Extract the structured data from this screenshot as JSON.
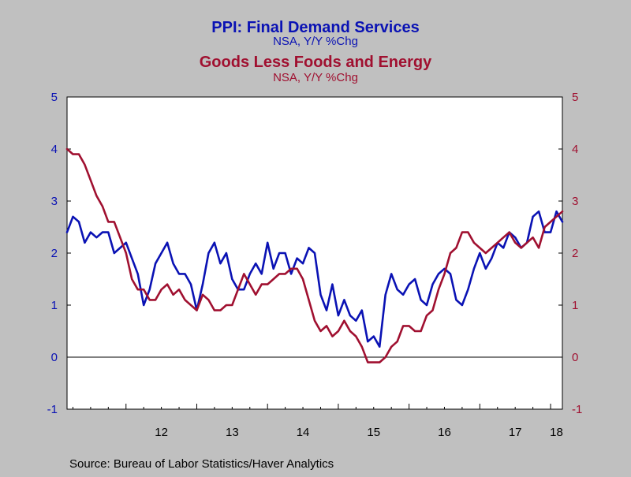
{
  "titles": {
    "series1_title": "PPI: Final Demand Services",
    "series1_subtitle": "NSA, Y/Y %Chg",
    "series2_title": "Goods Less Foods and Energy",
    "series2_subtitle": "NSA, Y/Y %Chg"
  },
  "source": "Source:  Bureau of Labor Statistics/Haver Analytics",
  "colors": {
    "background": "#c0c0c0",
    "plot_background": "#ffffff",
    "series1": "#0a12b4",
    "series2": "#a01030",
    "axis": "#000000"
  },
  "chart_data": {
    "type": "line",
    "x_unit": "monthly",
    "x_start": "2011-03",
    "x_end": "2018-03",
    "xtick_labels": [
      "12",
      "13",
      "14",
      "15",
      "16",
      "17",
      "18"
    ],
    "ylim": [
      -1,
      5
    ],
    "yticks": [
      -1,
      0,
      1,
      2,
      3,
      4,
      5
    ],
    "y_left_color": "#0a12b4",
    "y_right_color": "#a01030",
    "zero_line": true,
    "grid": false,
    "series": [
      {
        "name": "PPI: Final Demand Services",
        "axis": "left",
        "color": "#0a12b4",
        "values": [
          2.4,
          2.7,
          2.6,
          2.2,
          2.4,
          2.3,
          2.4,
          2.4,
          2.0,
          2.1,
          2.2,
          1.9,
          1.6,
          1.0,
          1.3,
          1.8,
          2.0,
          2.2,
          1.8,
          1.6,
          1.6,
          1.4,
          0.9,
          1.4,
          2.0,
          2.2,
          1.8,
          2.0,
          1.5,
          1.3,
          1.3,
          1.6,
          1.8,
          1.6,
          2.2,
          1.7,
          2.0,
          2.0,
          1.6,
          1.9,
          1.8,
          2.1,
          2.0,
          1.2,
          0.9,
          1.4,
          0.8,
          1.1,
          0.8,
          0.7,
          0.9,
          0.3,
          0.4,
          0.2,
          1.2,
          1.6,
          1.3,
          1.2,
          1.4,
          1.5,
          1.1,
          1.0,
          1.4,
          1.6,
          1.7,
          1.6,
          1.1,
          1.0,
          1.3,
          1.7,
          2.0,
          1.7,
          1.9,
          2.2,
          2.1,
          2.4,
          2.3,
          2.1,
          2.2,
          2.7,
          2.8,
          2.4,
          2.4,
          2.8,
          2.6
        ]
      },
      {
        "name": "Goods Less Foods and Energy",
        "axis": "right",
        "color": "#a01030",
        "values": [
          4.0,
          3.9,
          3.9,
          3.7,
          3.4,
          3.1,
          2.9,
          2.6,
          2.6,
          2.3,
          2.0,
          1.5,
          1.3,
          1.3,
          1.1,
          1.1,
          1.3,
          1.4,
          1.2,
          1.3,
          1.1,
          1.0,
          0.9,
          1.2,
          1.1,
          0.9,
          0.9,
          1.0,
          1.0,
          1.3,
          1.6,
          1.4,
          1.2,
          1.4,
          1.4,
          1.5,
          1.6,
          1.6,
          1.7,
          1.7,
          1.5,
          1.1,
          0.7,
          0.5,
          0.6,
          0.4,
          0.5,
          0.7,
          0.5,
          0.4,
          0.2,
          -0.1,
          -0.1,
          -0.1,
          0.0,
          0.2,
          0.3,
          0.6,
          0.6,
          0.5,
          0.5,
          0.8,
          0.9,
          1.3,
          1.6,
          2.0,
          2.1,
          2.4,
          2.4,
          2.2,
          2.1,
          2.0,
          2.1,
          2.2,
          2.3,
          2.4,
          2.2,
          2.1,
          2.2,
          2.3,
          2.1,
          2.5,
          2.6,
          2.7,
          2.8
        ]
      }
    ]
  }
}
